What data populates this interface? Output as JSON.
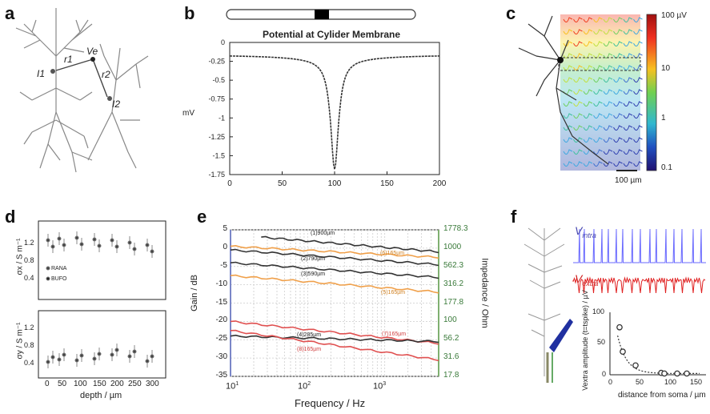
{
  "panels": {
    "a": {
      "label": "a",
      "points": {
        "i1": "I1",
        "r1": "r1",
        "ve": "Ve",
        "r2": "r2",
        "i2": "I2"
      }
    },
    "b": {
      "label": "b",
      "title": "Potential at Cylider Membrane",
      "ylabel": "mV",
      "xticks": [
        "0",
        "50",
        "100",
        "150",
        "200"
      ],
      "yticks": [
        "0",
        "-0.25",
        "-0.5",
        "-0.75",
        "-1",
        "-1.25",
        "-1.5",
        "-1.75"
      ]
    },
    "c": {
      "label": "c",
      "colorbar_ticks": [
        "100 µV",
        "10",
        "1",
        "0.1"
      ],
      "scalebar": "100 µm"
    },
    "d": {
      "label": "d",
      "top_ylabel": "σx / S m⁻¹",
      "top_yticks": [
        "1.2",
        "0.8",
        "0.4"
      ],
      "legend": [
        "RANA",
        "BUFO"
      ],
      "bottom_ylabel": "σy / S m⁻¹",
      "bottom_yticks": [
        "1.2",
        "0.8",
        "0.4"
      ],
      "xticks": [
        "0",
        "50",
        "100",
        "150",
        "200",
        "250",
        "300"
      ],
      "xlabel": "depth / µm"
    },
    "e": {
      "label": "e",
      "ylabel_left": "Gain / dB",
      "ylabel_right": "Impedance / Ohm",
      "xlabel": "Frequency / Hz",
      "left_ticks": [
        "5",
        "0",
        "-5",
        "-10",
        "-15",
        "-20",
        "-25",
        "-30",
        "-35"
      ],
      "right_ticks": [
        "1778.3",
        "1000",
        "562.3",
        "316.2",
        "177.8",
        "100",
        "56.2",
        "31.6",
        "17.8"
      ],
      "xticks": [
        "10",
        "10",
        "10"
      ],
      "xtick_exps": [
        "1",
        "2",
        "3"
      ],
      "curve_labels": [
        "(1)900µm",
        "(6)165µm",
        "(2)790µm",
        "(3)590µm",
        "(5)165µm",
        "(4)285µm",
        "(7)165µm",
        "(8)165µm"
      ]
    },
    "f": {
      "label": "f",
      "v_intra": "V",
      "v_intra_sub": "intra",
      "v_extra": "V",
      "v_extra_sub": "extra",
      "ylabel": "Vextra amplitude (t=tspike) / µV",
      "xlabel": "distance from soma / µm",
      "yticks": [
        "100",
        "50",
        "0"
      ],
      "xticks": [
        "0",
        "50",
        "100",
        "150"
      ]
    }
  },
  "chart_data": [
    {
      "type": "line",
      "title": "Potential at Cylider Membrane",
      "xlabel": "",
      "ylabel": "mV",
      "xlim": [
        0,
        200
      ],
      "ylim": [
        -1.75,
        0
      ],
      "x": [
        0,
        20,
        40,
        60,
        80,
        90,
        95,
        98,
        100,
        102,
        105,
        110,
        120,
        140,
        160,
        180,
        200
      ],
      "y": [
        -0.17,
        -0.19,
        -0.22,
        -0.26,
        -0.38,
        -0.55,
        -0.9,
        -1.4,
        -1.6,
        -1.4,
        -0.9,
        -0.55,
        -0.38,
        -0.26,
        -0.22,
        -0.19,
        -0.17
      ]
    },
    {
      "type": "line",
      "xlabel": "Frequency / Hz",
      "ylabel": "Gain / dB",
      "xscale": "log",
      "xlim": [
        10,
        5000
      ],
      "ylim": [
        -35,
        5
      ],
      "series": [
        {
          "name": "(1)900µm",
          "x": [
            25,
            5000
          ],
          "y": [
            3.0,
            -1.0
          ],
          "color": "#333333"
        },
        {
          "name": "(6)165µm",
          "x": [
            10,
            5000
          ],
          "y": [
            0.5,
            -2.5
          ],
          "color": "#f0a04a"
        },
        {
          "name": "(2)790µm",
          "x": [
            10,
            5000
          ],
          "y": [
            -0.5,
            -4.5
          ],
          "color": "#333333"
        },
        {
          "name": "(3)590µm",
          "x": [
            10,
            5000
          ],
          "y": [
            -4.0,
            -8.0
          ],
          "color": "#333333"
        },
        {
          "name": "(5)165µm",
          "x": [
            10,
            5000
          ],
          "y": [
            -7.5,
            -12.0
          ],
          "color": "#f0a04a"
        },
        {
          "name": "(7)165µm",
          "x": [
            10,
            5000
          ],
          "y": [
            -20.0,
            -26.0
          ],
          "color": "#e05050"
        },
        {
          "name": "(4)285µm",
          "x": [
            10,
            5000
          ],
          "y": [
            -24.0,
            -25.5
          ],
          "color": "#333333"
        },
        {
          "name": "(8)165µm",
          "x": [
            10,
            5000
          ],
          "y": [
            -22.5,
            -30.5
          ],
          "color": "#e05050"
        }
      ]
    },
    {
      "type": "scatter",
      "xlabel": "distance from soma / µm",
      "ylabel": "Vextra amplitude (t=tspike) / µV",
      "xlim": [
        0,
        150
      ],
      "ylim": [
        0,
        100
      ],
      "x": [
        15,
        20,
        40,
        80,
        85,
        105,
        120
      ],
      "y": [
        76,
        37,
        15,
        3,
        2,
        2,
        2
      ]
    }
  ]
}
